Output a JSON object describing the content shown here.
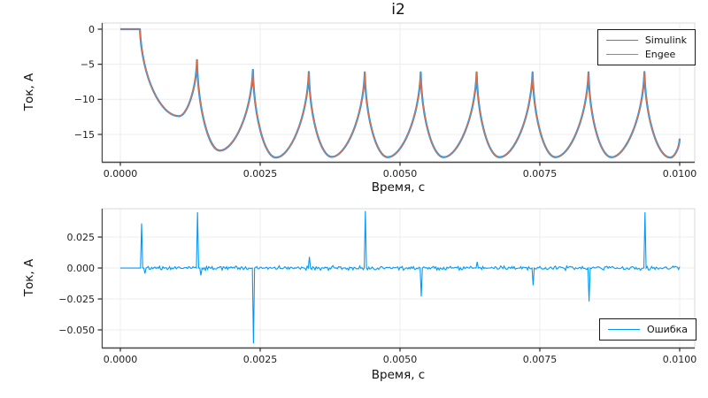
{
  "figure_title": "i2",
  "chart_data": [
    {
      "type": "line",
      "title": "i2",
      "xlabel": "Время, с",
      "ylabel": "Ток, А",
      "xlim": [
        -0.000332,
        0.010269
      ],
      "ylim": [
        -18.91,
        0.88
      ],
      "grid": true,
      "legend_position": "top-right",
      "xticks": {
        "values": [
          0,
          0.0025,
          0.005,
          0.0075,
          0.01
        ],
        "labels": [
          "0.0000",
          "0.0025",
          "0.0050",
          "0.0075",
          "0.0100"
        ]
      },
      "yticks": {
        "values": [
          0,
          -5,
          -10,
          -15
        ],
        "labels": [
          "0",
          "−5",
          "−10",
          "−15"
        ]
      },
      "legend": {
        "entries": [
          {
            "label": "Simulink",
            "color": "#009AFA"
          },
          {
            "label": "Engee",
            "color": "#E26E46"
          }
        ]
      },
      "series": [
        {
          "name": "Simulink",
          "color": "#009AFA",
          "keypoints": [
            [
              0.0,
              0.0
            ],
            [
              0.00035,
              0.0
            ],
            [
              0.00105,
              -12.4
            ],
            [
              0.00137,
              -4.4
            ],
            [
              0.00178,
              -17.3
            ],
            [
              0.00237,
              -5.8
            ],
            [
              0.00278,
              -18.3
            ],
            [
              0.00337,
              -6.1
            ],
            [
              0.00378,
              -18.2
            ],
            [
              0.00437,
              -6.15
            ],
            [
              0.00478,
              -18.25
            ],
            [
              0.00537,
              -6.15
            ],
            [
              0.00578,
              -18.25
            ],
            [
              0.00637,
              -6.15
            ],
            [
              0.00678,
              -18.25
            ],
            [
              0.00737,
              -6.15
            ],
            [
              0.00778,
              -18.25
            ],
            [
              0.00837,
              -6.15
            ],
            [
              0.00878,
              -18.25
            ],
            [
              0.00937,
              -6.1
            ],
            [
              0.00983,
              -18.3
            ],
            [
              0.01,
              -15.6
            ]
          ]
        },
        {
          "name": "Engee",
          "color": "#E26E46",
          "keypoints_same_as": "Simulink"
        }
      ]
    },
    {
      "type": "line",
      "title": "",
      "xlabel": "Время, с",
      "ylabel": "Ток, А",
      "xlim": [
        -0.000332,
        0.010269
      ],
      "ylim": [
        -0.0643,
        0.0479
      ],
      "grid": true,
      "legend_position": "bottom-right",
      "xticks": {
        "values": [
          0,
          0.0025,
          0.005,
          0.0075,
          0.01
        ],
        "labels": [
          "0.0000",
          "0.0025",
          "0.0050",
          "0.0075",
          "0.0100"
        ]
      },
      "yticks": {
        "values": [
          0.025,
          0,
          -0.025,
          -0.05
        ],
        "labels": [
          "0.025",
          "0.000",
          "−0.025",
          "−0.050"
        ]
      },
      "legend": {
        "entries": [
          {
            "label": "Ошибка",
            "color": "#009AFA"
          }
        ]
      },
      "series": [
        {
          "name": "Ошибка",
          "color": "#009AFA",
          "baseline": 0,
          "flat_until": 0.00035,
          "noise_amplitude": 0.002,
          "spikes": [
            {
              "t": 0.00038,
              "v": 0.036
            },
            {
              "t": 0.00044,
              "v": -0.0045
            },
            {
              "t": 0.00138,
              "v": 0.045
            },
            {
              "t": 0.00144,
              "v": -0.006
            },
            {
              "t": 0.00238,
              "v": -0.061
            },
            {
              "t": 0.00338,
              "v": 0.009
            },
            {
              "t": 0.00438,
              "v": 0.046
            },
            {
              "t": 0.00538,
              "v": -0.023
            },
            {
              "t": 0.00638,
              "v": 0.005
            },
            {
              "t": 0.00738,
              "v": -0.014
            },
            {
              "t": 0.00838,
              "v": -0.027
            },
            {
              "t": 0.00938,
              "v": 0.045
            }
          ]
        }
      ]
    }
  ],
  "style": {
    "grid_color": "#ececec",
    "frame_color": "#d8d8d8",
    "spine_color": "#4a4a4a",
    "tick_color": "#2a2a2a",
    "tick_label_size": 11,
    "background": "#ffffff"
  }
}
